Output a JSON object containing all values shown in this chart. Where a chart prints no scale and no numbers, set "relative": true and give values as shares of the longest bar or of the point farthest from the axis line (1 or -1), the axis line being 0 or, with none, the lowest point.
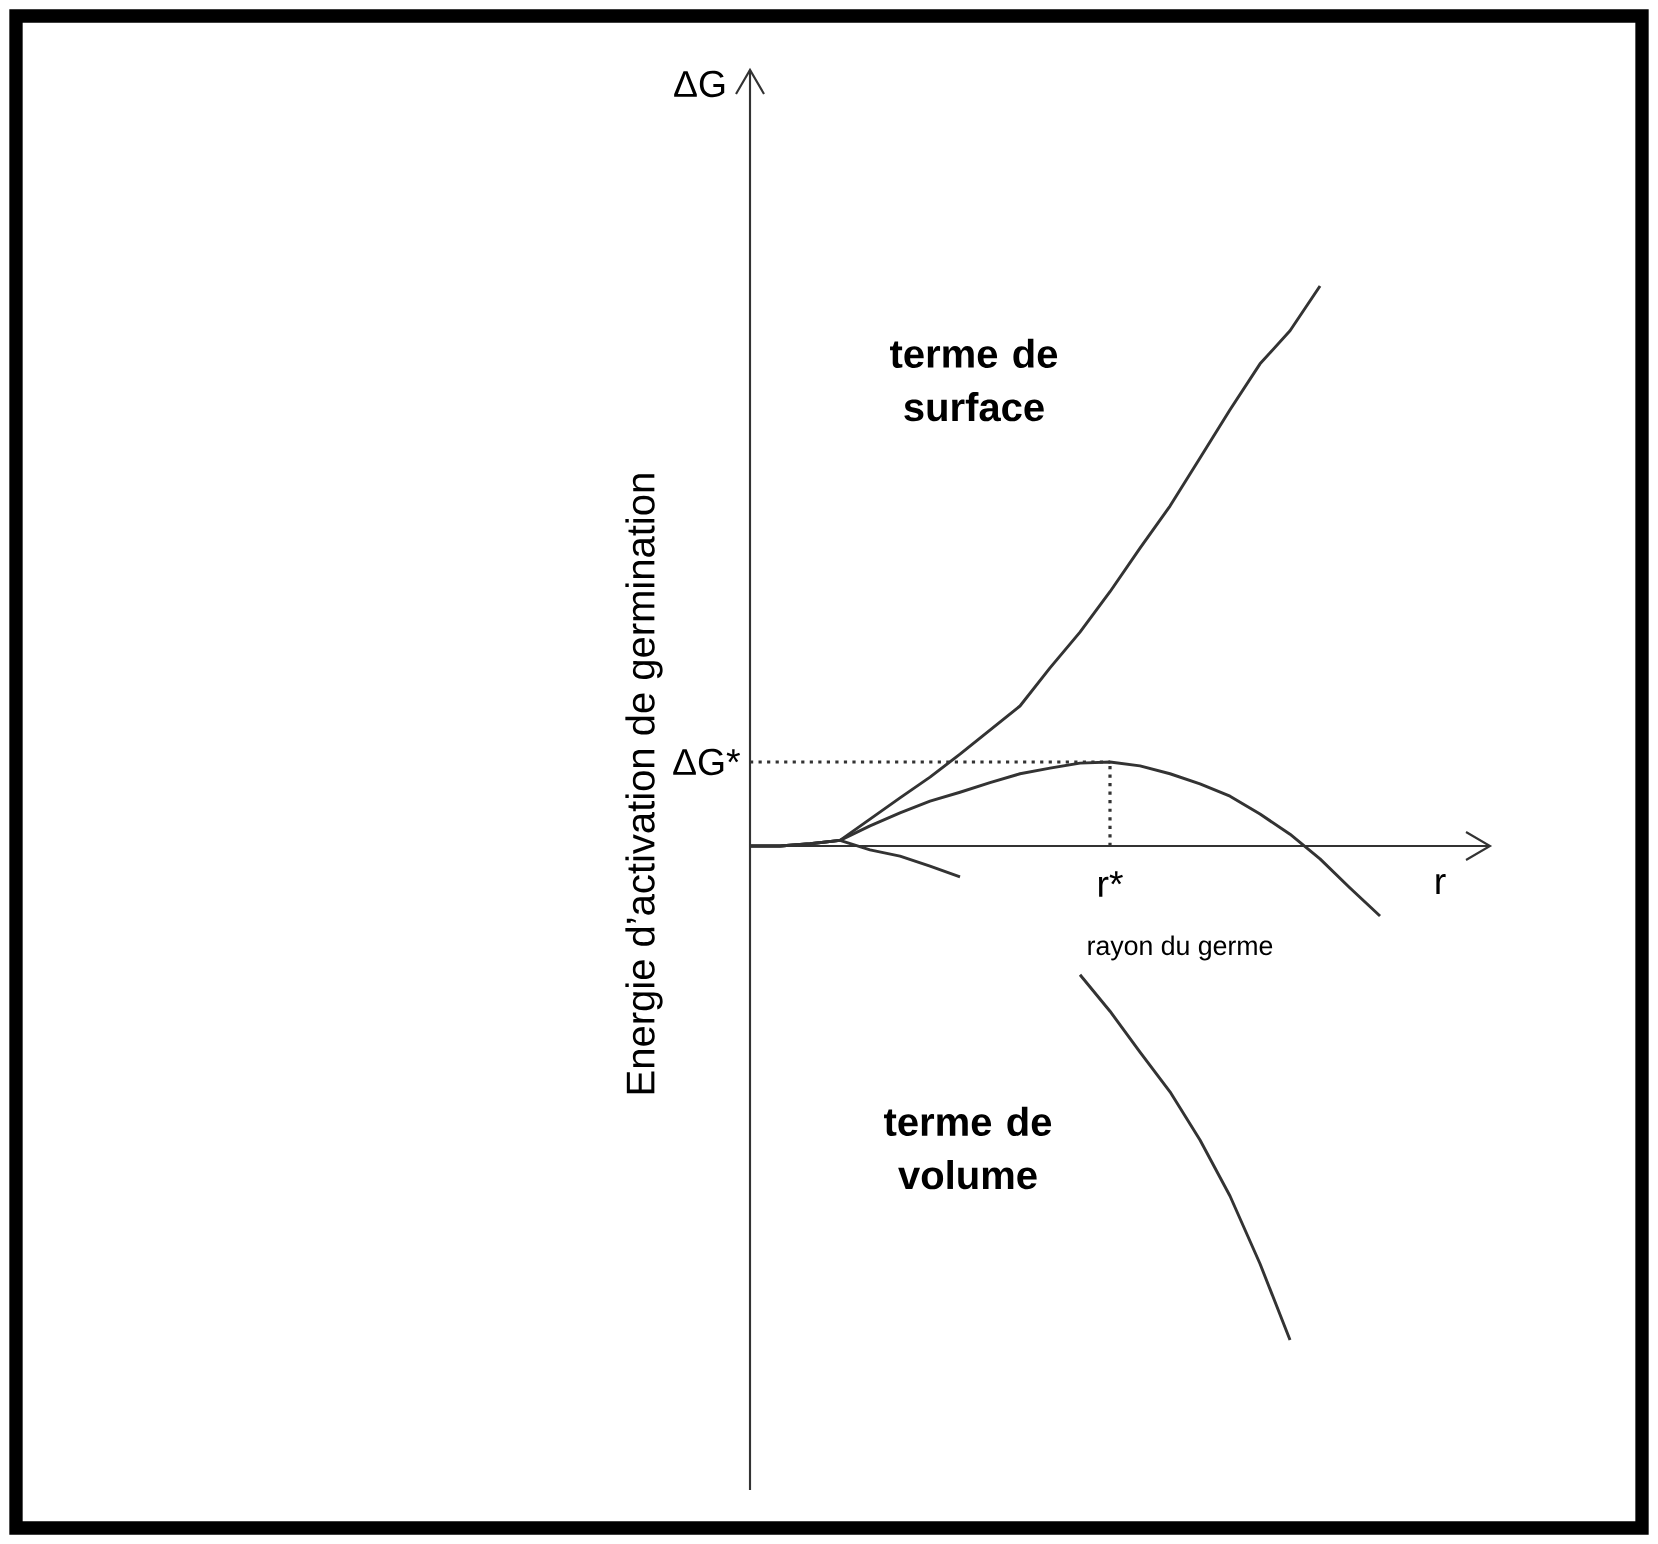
{
  "chart_data": {
    "type": "line",
    "relative": true,
    "xlabel": "r",
    "ylabel": "Energie d’activation de germination",
    "categories": [
      null,
      null,
      null,
      null,
      null,
      null,
      null,
      null,
      null,
      null,
      null,
      null,
      null,
      null,
      null,
      null,
      null,
      null,
      null,
      null,
      null,
      null
    ],
    "series": [
      {
        "color": "#333333",
        "values": [
          0,
          0,
          0.004,
          0.01,
          0.048,
          0.086,
          0.123,
          0.164,
          0.207,
          0.25,
          0.318,
          0.382,
          0.454,
          0.532,
          0.607,
          0.693,
          0.779,
          0.861,
          0.92,
          1,
          null,
          null
        ]
      },
      {
        "color": "#333333",
        "values": [
          0,
          0,
          0.004,
          0.01,
          0.036,
          0.059,
          0.08,
          0.096,
          0.113,
          0.129,
          0.139,
          0.148,
          0.15,
          0.143,
          0.129,
          0.111,
          0.089,
          0.057,
          0.021,
          -0.023,
          -0.075,
          -0.125
        ]
      },
      {
        "color": "#333333",
        "values": [
          0,
          0,
          0.004,
          0.01,
          -0.007,
          -0.018,
          -0.036,
          -0.055,
          null,
          null,
          null,
          -0.23,
          -0.295,
          -0.368,
          -0.439,
          -0.525,
          -0.625,
          -0.746,
          -0.882,
          null,
          null,
          null
        ]
      }
    ],
    "ref_lines": [
      {
        "axis": "y",
        "value": 0.15,
        "label": "ΔG*",
        "line_style": "dotted",
        "color": "#333333"
      }
    ],
    "annotations": [
      "ΔG",
      "terme de surface",
      "r*",
      "rayon du germe",
      "terme de volume"
    ],
    "marker": "none",
    "line_style": "solid"
  }
}
